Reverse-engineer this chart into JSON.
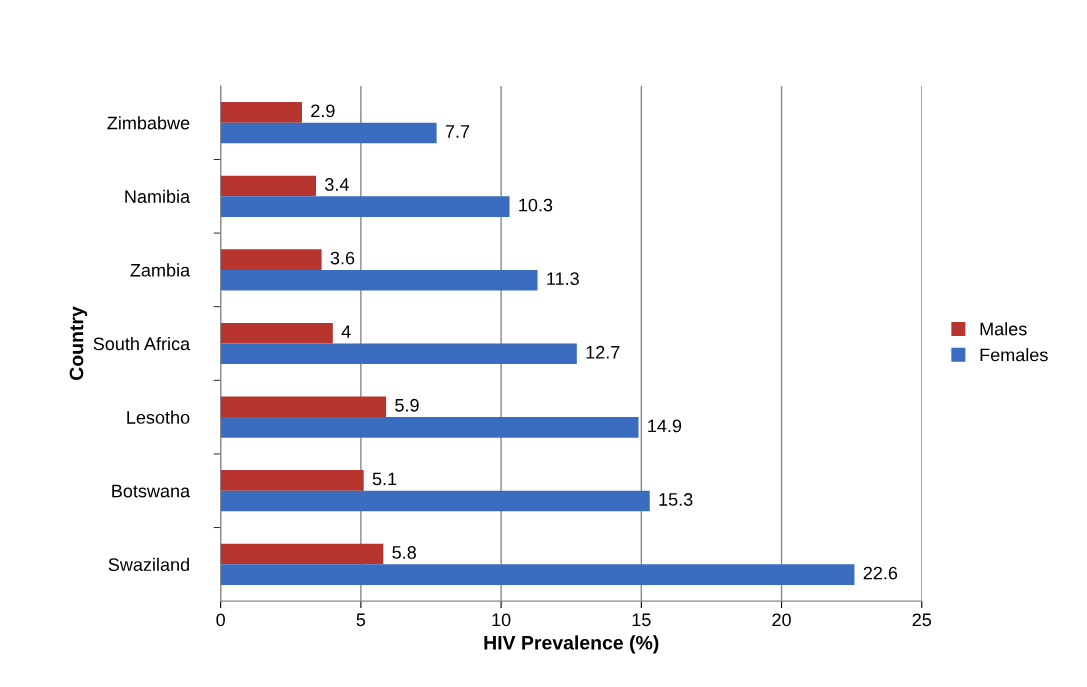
{
  "chart_data": {
    "type": "bar",
    "orientation": "horizontal",
    "categories": [
      "Zimbabwe",
      "Namibia",
      "Zambia",
      "South Africa",
      "Lesotho",
      "Botswana",
      "Swaziland"
    ],
    "series": [
      {
        "name": "Males",
        "color": "#b8352f",
        "values": [
          2.9,
          3.4,
          3.6,
          4,
          5.9,
          5.1,
          5.8
        ]
      },
      {
        "name": "Females",
        "color": "#3a6cc0",
        "values": [
          7.7,
          10.3,
          11.3,
          12.7,
          14.9,
          15.3,
          22.6
        ]
      }
    ],
    "xlabel": "HIV Prevalence (%)",
    "ylabel": "Country",
    "xlim": [
      0,
      25
    ],
    "xticks": [
      0,
      5,
      10,
      15,
      20,
      25
    ],
    "grid": "x",
    "legend": "right",
    "data_labels": true
  }
}
